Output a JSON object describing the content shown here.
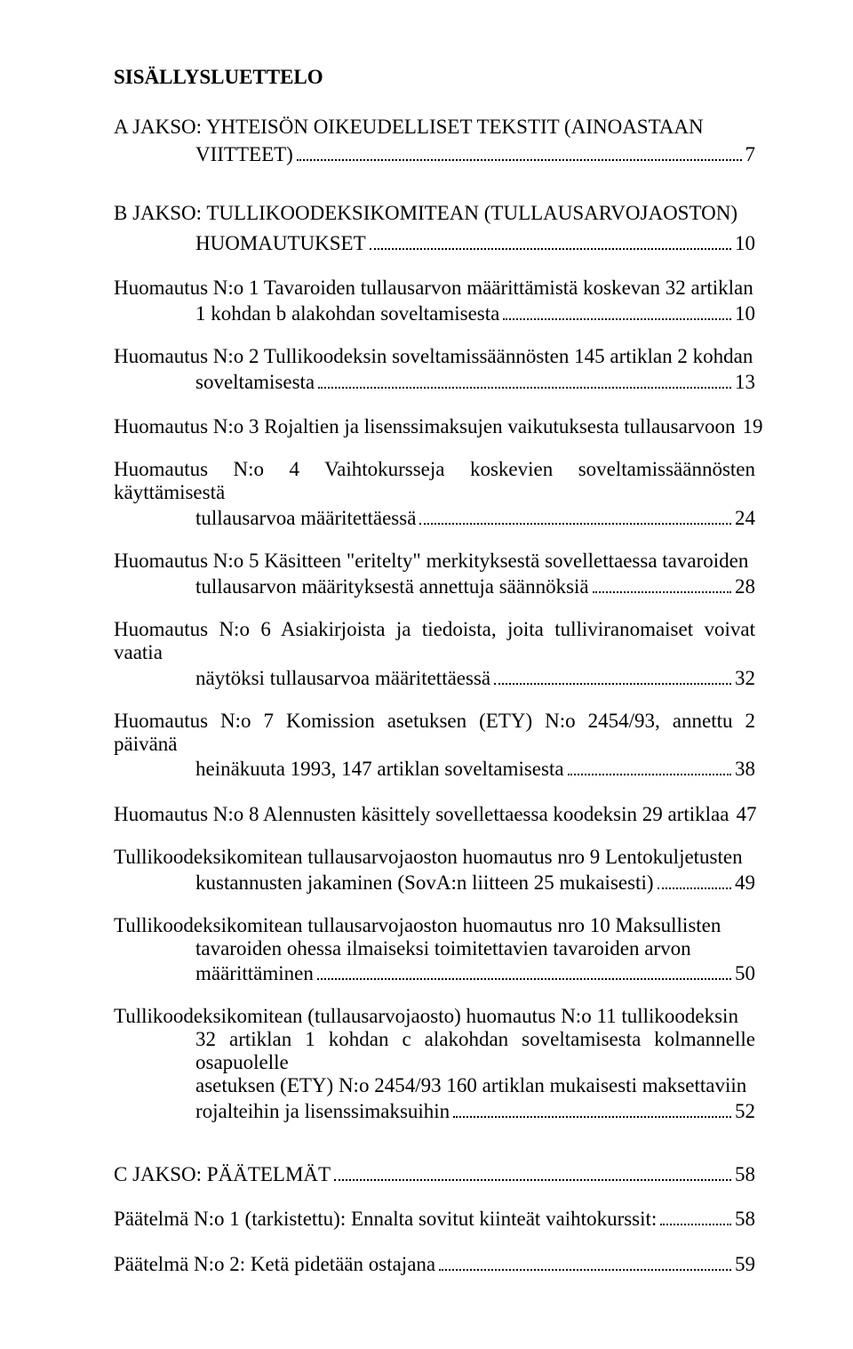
{
  "title": "SISÄLLYSLUETTELO",
  "sectionA": {
    "line1": "A JAKSO:   YHTEISÖN   OIKEUDELLISET   TEKSTIT   (AINOASTAAN",
    "line2_text": "VIITTEET)",
    "page": "7"
  },
  "sectionB": {
    "line1": "B JAKSO:      TULLIKOODEKSIKOMITEAN     (TULLAUSARVOJAOSTON)",
    "line2_text": "HUOMAUTUKSET",
    "page": "10"
  },
  "entries": [
    {
      "first": "Huomautus N:o 1 Tavaroiden tullausarvon määrittämistä koskevan 32 artiklan",
      "mid": [],
      "last": "1 kohdan b alakohdan soveltamisesta",
      "page": "10"
    },
    {
      "first": "Huomautus N:o 2 Tullikoodeksin soveltamissäännösten 145 artiklan 2 kohdan",
      "mid": [],
      "last": "soveltamisesta",
      "page": "13"
    },
    {
      "first": "",
      "mid": [],
      "last_noindent": "Huomautus N:o 3 Rojaltien ja lisenssimaksujen vaikutuksesta tullausarvoon",
      "page": "19"
    },
    {
      "first": "Huomautus N:o 4 Vaihtokursseja koskevien soveltamissäännösten käyttämisestä",
      "mid": [],
      "last": "tullausarvoa määritettäessä",
      "page": "24"
    },
    {
      "first": "Huomautus N:o 5 Käsitteen \"eritelty\" merkityksestä sovellettaessa tavaroiden",
      "mid": [],
      "last": "tullausarvon määrityksestä annettuja säännöksiä",
      "page": "28"
    },
    {
      "first": "Huomautus N:o 6 Asiakirjoista ja tiedoista, joita tulliviranomaiset voivat vaatia",
      "mid": [],
      "last": "näytöksi tullausarvoa määritettäessä",
      "page": "32"
    },
    {
      "first": "Huomautus N:o 7 Komission asetuksen (ETY) N:o 2454/93, annettu 2 päivänä",
      "mid": [],
      "last": "heinäkuuta 1993, 147 artiklan soveltamisesta",
      "page": "38"
    },
    {
      "first": "",
      "mid": [],
      "last_noindent": "Huomautus N:o 8 Alennusten käsittely sovellettaessa koodeksin 29 artiklaa",
      "page": "47"
    },
    {
      "first": "Tullikoodeksikomitean  tullausarvojaoston  huomautus  nro 9  Lentokuljetusten",
      "mid": [],
      "last": "kustannusten jakaminen (SovA:n liitteen 25 mukaisesti)",
      "page": "49"
    },
    {
      "first": "Tullikoodeksikomitean   tullausarvojaoston   huomautus   nro 10   Maksullisten",
      "mid": [
        "tavaroiden    ohessa    ilmaiseksi    toimitettavien    tavaroiden    arvon"
      ],
      "last": "määrittäminen",
      "page": "50"
    },
    {
      "first": "Tullikoodeksikomitean (tullausarvojaosto) huomautus N:o 11 tullikoodeksin",
      "mid": [
        "32 artiklan 1 kohdan c alakohdan soveltamisesta kolmannelle osapuolelle",
        "asetuksen (ETY)   N:o 2454/93   160 artiklan   mukaisesti   maksettaviin"
      ],
      "last": "rojalteihin ja lisenssimaksuihin",
      "page": "52"
    }
  ],
  "sectionC": {
    "text": "C JAKSO: PÄÄTELMÄT",
    "page": "58"
  },
  "cEntries": [
    {
      "last_noindent": "Päätelmä N:o 1 (tarkistettu): Ennalta sovitut kiinteät vaihtokurssit:",
      "page": "58"
    },
    {
      "last_noindent": "Päätelmä N:o 2: Ketä pidetään ostajana",
      "page": "59"
    }
  ]
}
